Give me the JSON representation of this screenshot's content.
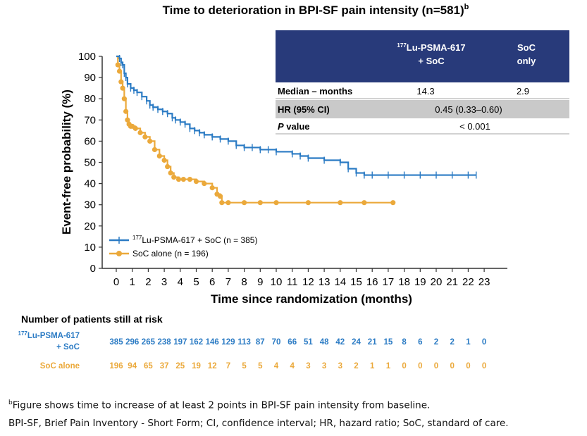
{
  "colors": {
    "lu": "#2b7bc4",
    "soc": "#eba93b",
    "table_header_bg": "#283a7a",
    "table_hr_bg": "#c9c9c9"
  },
  "chart_data": {
    "type": "line",
    "title": "Time to deterioration in BPI-SF pain intensity (n=581)",
    "title_superscript": "b",
    "xlabel": "Time since randomization (months)",
    "ylabel": "Event-free probability (%)",
    "xlim": [
      0,
      23
    ],
    "ylim": [
      0,
      100
    ],
    "x_ticks": [
      0,
      1,
      2,
      3,
      4,
      5,
      6,
      7,
      8,
      9,
      10,
      11,
      12,
      13,
      14,
      15,
      16,
      17,
      18,
      19,
      20,
      21,
      22,
      23
    ],
    "y_ticks": [
      0,
      10,
      20,
      30,
      40,
      50,
      60,
      70,
      80,
      90,
      100
    ],
    "series": [
      {
        "name": "Lu-PSMA-617 + SoC (n = 385)",
        "legend_prefix": "177",
        "legend_label": "Lu-PSMA-617 + SoC (n = 385)",
        "x": [
          0,
          0.2,
          0.3,
          0.4,
          0.5,
          0.6,
          0.7,
          0.9,
          1.1,
          1.3,
          1.6,
          1.9,
          2.1,
          2.3,
          2.6,
          2.9,
          3.2,
          3.5,
          3.7,
          4.0,
          4.3,
          4.6,
          4.9,
          5.2,
          5.5,
          6.0,
          6.5,
          7.0,
          7.5,
          8.0,
          8.5,
          9.0,
          9.5,
          10.0,
          11.0,
          11.5,
          12.0,
          13.0,
          14.0,
          14.5,
          15.0,
          15.5,
          16.0,
          17.0,
          18.0,
          19.0,
          20.0,
          21.0,
          22.0,
          22.5
        ],
        "y": [
          100,
          99,
          97,
          96,
          92,
          90,
          87,
          85,
          84,
          83,
          81,
          79,
          77,
          76,
          75,
          74,
          73,
          71,
          70,
          69,
          68,
          66,
          65,
          64,
          63,
          62,
          61,
          60,
          58,
          57,
          57,
          56,
          56,
          55,
          54,
          53,
          52,
          51,
          50,
          47,
          45,
          44,
          44,
          44,
          44,
          44,
          44,
          44,
          44,
          44
        ]
      },
      {
        "name": "SoC alone (n = 196)",
        "legend_label": "SoC alone (n = 196)",
        "x": [
          0,
          0.1,
          0.2,
          0.3,
          0.4,
          0.5,
          0.6,
          0.7,
          0.8,
          0.9,
          1.0,
          1.2,
          1.5,
          1.8,
          2.1,
          2.4,
          2.7,
          3.0,
          3.2,
          3.4,
          3.6,
          3.9,
          4.2,
          4.6,
          5.0,
          5.5,
          6.0,
          6.3,
          6.5,
          6.6,
          7.0,
          8.0,
          9.0,
          10.0,
          12.0,
          14.0,
          15.5,
          17.3
        ],
        "y": [
          100,
          96,
          93,
          88,
          85,
          80,
          74,
          70,
          68,
          67,
          67,
          66,
          64,
          62,
          60,
          56,
          53,
          51,
          48,
          45,
          43,
          42,
          42,
          42,
          41,
          40,
          38,
          35,
          34,
          31,
          31,
          31,
          31,
          31,
          31,
          31,
          31,
          31
        ]
      }
    ],
    "summary_table": {
      "col1_prefix": "177",
      "col1_line1": "Lu-PSMA-617",
      "col1_line2": "+ SoC",
      "col2_line1": "SoC",
      "col2_line2": "only",
      "median_label": "Median – months",
      "median_lu": "14.3",
      "median_soc": "2.9",
      "hr_label": "HR (95% CI)",
      "hr_value": "0.45 (0.33–0.60)",
      "p_label_italic": "P",
      "p_label_rest": " value",
      "p_value": "< 0.001"
    },
    "at_risk": {
      "heading": "Number of patients still at risk",
      "lu_prefix": "177",
      "lu_label_line1": "Lu-PSMA-617",
      "lu_label_line2": "+ SoC",
      "soc_label": "SoC alone",
      "lu_values": [
        "385",
        "296",
        "265",
        "238",
        "197",
        "162",
        "146",
        "129",
        "113",
        "87",
        "70",
        "66",
        "51",
        "48",
        "42",
        "24",
        "21",
        "15",
        "8",
        "6",
        "2",
        "2",
        "1",
        "0"
      ],
      "soc_values": [
        "196",
        "94",
        "65",
        "37",
        "25",
        "19",
        "12",
        "7",
        "5",
        "5",
        "4",
        "4",
        "3",
        "3",
        "3",
        "2",
        "1",
        "1",
        "0",
        "0",
        "0",
        "0",
        "0",
        "0"
      ]
    }
  },
  "footnotes": {
    "line1_superscript": "b",
    "line1": "Figure shows time to increase of at least 2 points in BPI-SF pain intensity from baseline.",
    "line2": "BPI-SF, Brief Pain Inventory - Short Form; CI, confidence interval; HR, hazard ratio; SoC, standard of care."
  }
}
